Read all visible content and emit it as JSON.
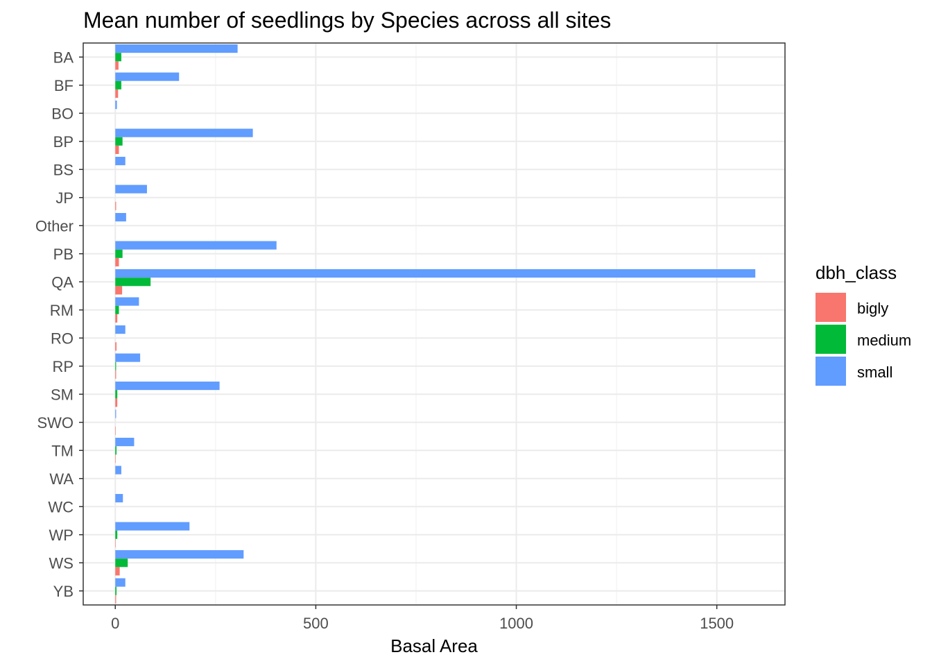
{
  "chart_data": {
    "type": "bar",
    "orientation": "horizontal",
    "title": "Mean number of seedlings by Species across all sites",
    "xlabel": "Basal Area",
    "ylabel": "",
    "xlim": [
      -80,
      1670
    ],
    "xticks": [
      0,
      500,
      1000,
      1500
    ],
    "grid": true,
    "legend_position": "right",
    "legend_title": "dbh_class",
    "categories": [
      "BA",
      "BF",
      "BO",
      "BP",
      "BS",
      "JP",
      "Other",
      "PB",
      "QA",
      "RM",
      "RO",
      "RP",
      "SM",
      "SWO",
      "TM",
      "WA",
      "WC",
      "WP",
      "WS",
      "YB"
    ],
    "series": [
      {
        "name": "bigly",
        "color": "#F8766D",
        "values": [
          8,
          7,
          0,
          9,
          0,
          2,
          0,
          9,
          17,
          5,
          3,
          2,
          5,
          1,
          1,
          0,
          0,
          1,
          11,
          2
        ]
      },
      {
        "name": "medium",
        "color": "#00BA38",
        "values": [
          15,
          15,
          0,
          18,
          0,
          0,
          0,
          18,
          88,
          9,
          0,
          2,
          5,
          0,
          3,
          0,
          0,
          5,
          31,
          3
        ]
      },
      {
        "name": "small",
        "color": "#619CFF",
        "values": [
          305,
          159,
          4,
          343,
          25,
          79,
          27,
          402,
          1596,
          59,
          25,
          62,
          260,
          2,
          47,
          15,
          19,
          185,
          320,
          25
        ]
      }
    ]
  }
}
